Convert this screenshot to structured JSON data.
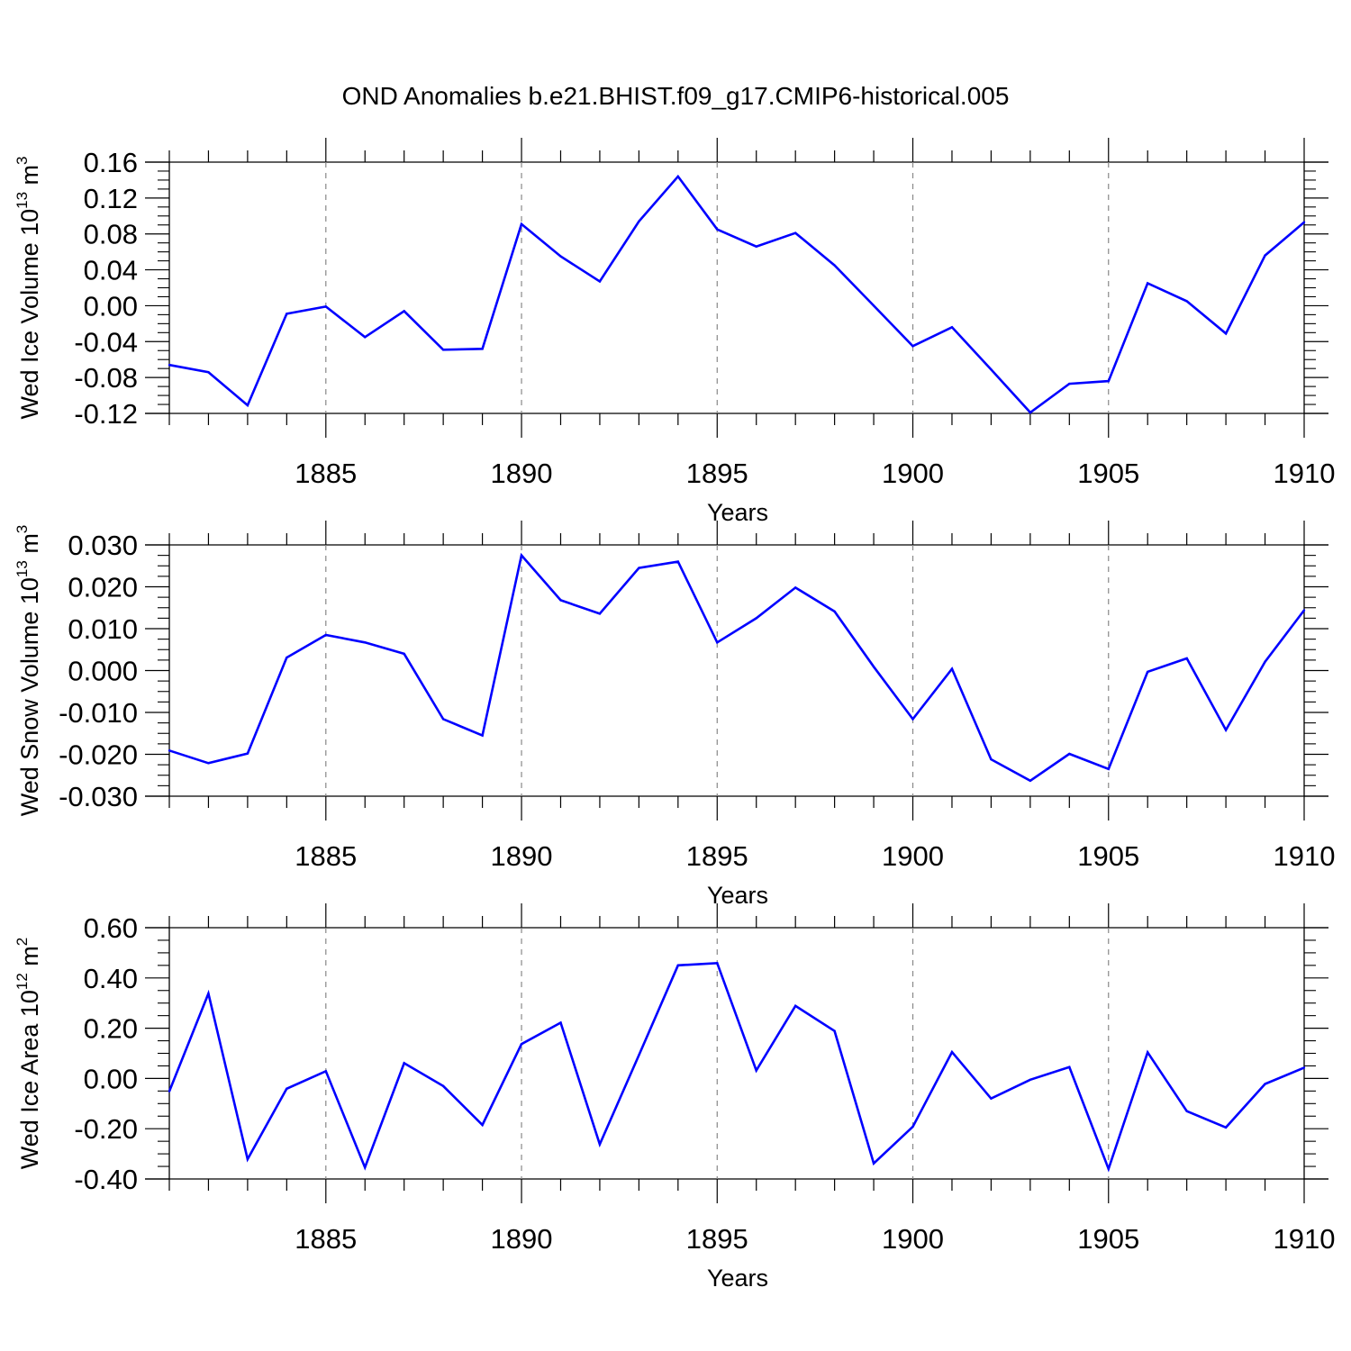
{
  "figure": {
    "title": "OND Anomalies b.e21.BHIST.f09_g17.CMIP6-historical.005"
  },
  "chart_data": [
    {
      "type": "line",
      "ylabel": "Wed Ice Volume 10",
      "ylabel_sup": "13",
      "ylabel_unit": " m",
      "ylabel_unit_sup": "3",
      "xlabel": "Years",
      "xlim": [
        1881,
        1910
      ],
      "ylim": [
        -0.12,
        0.16
      ],
      "yticks": [
        -0.12,
        -0.08,
        -0.04,
        0.0,
        0.04,
        0.08,
        0.12,
        0.16
      ],
      "ytick_labels": [
        "-0.12",
        "-0.08",
        "-0.04",
        "0.00",
        "0.04",
        "0.08",
        "0.12",
        "0.16"
      ],
      "xticks": [
        1885,
        1890,
        1895,
        1900,
        1905,
        1910
      ],
      "xtick_labels": [
        "1885",
        "1890",
        "1895",
        "1900",
        "1905",
        "1910"
      ],
      "grid": "vertical dashed at major x ticks",
      "series_color": "#0000ff",
      "x": [
        1881,
        1882,
        1883,
        1884,
        1885,
        1886,
        1887,
        1888,
        1889,
        1890,
        1891,
        1892,
        1893,
        1894,
        1895,
        1896,
        1897,
        1898,
        1899,
        1900,
        1901,
        1902,
        1903,
        1904,
        1905,
        1906,
        1907,
        1908,
        1909,
        1910
      ],
      "values": [
        -0.066,
        -0.074,
        -0.111,
        -0.009,
        -0.001,
        -0.035,
        -0.006,
        -0.049,
        -0.048,
        0.091,
        0.055,
        0.027,
        0.094,
        0.144,
        0.085,
        0.066,
        0.081,
        0.045,
        0.0,
        -0.045,
        -0.024,
        -0.071,
        -0.119,
        -0.087,
        -0.084,
        0.025,
        0.005,
        -0.031,
        0.056,
        0.093
      ]
    },
    {
      "type": "line",
      "ylabel": "Wed Snow Volume 10",
      "ylabel_sup": "13",
      "ylabel_unit": " m",
      "ylabel_unit_sup": "3",
      "xlabel": "Years",
      "xlim": [
        1881,
        1910
      ],
      "ylim": [
        -0.03,
        0.03
      ],
      "yticks": [
        -0.03,
        -0.02,
        -0.01,
        0.0,
        0.01,
        0.02,
        0.03
      ],
      "ytick_labels": [
        "-0.030",
        "-0.020",
        "-0.010",
        "0.000",
        "0.010",
        "0.020",
        "0.030"
      ],
      "xticks": [
        1885,
        1890,
        1895,
        1900,
        1905,
        1910
      ],
      "xtick_labels": [
        "1885",
        "1890",
        "1895",
        "1900",
        "1905",
        "1910"
      ],
      "grid": "vertical dashed at major x ticks",
      "series_color": "#0000ff",
      "x": [
        1881,
        1882,
        1883,
        1884,
        1885,
        1886,
        1887,
        1888,
        1889,
        1890,
        1891,
        1892,
        1893,
        1894,
        1895,
        1896,
        1897,
        1898,
        1899,
        1900,
        1901,
        1902,
        1903,
        1904,
        1905,
        1906,
        1907,
        1908,
        1909,
        1910
      ],
      "values": [
        -0.0191,
        -0.0221,
        -0.0198,
        0.0031,
        0.0085,
        0.0067,
        0.004,
        -0.0116,
        -0.0155,
        0.0275,
        0.0168,
        0.0136,
        0.0245,
        0.026,
        0.0067,
        0.0125,
        0.0198,
        0.0141,
        0.0009,
        -0.0116,
        0.0004,
        -0.0212,
        -0.0263,
        -0.0199,
        -0.0235,
        -0.0003,
        0.0029,
        -0.0142,
        0.0021,
        0.0144
      ]
    },
    {
      "type": "line",
      "ylabel": "Wed Ice Area 10",
      "ylabel_sup": "12",
      "ylabel_unit": " m",
      "ylabel_unit_sup": "2",
      "xlabel": "Years",
      "xlim": [
        1881,
        1910
      ],
      "ylim": [
        -0.4,
        0.6
      ],
      "yticks": [
        -0.4,
        -0.2,
        0.0,
        0.2,
        0.4,
        0.6
      ],
      "ytick_labels": [
        "-0.40",
        "-0.20",
        "0.00",
        "0.20",
        "0.40",
        "0.60"
      ],
      "xticks": [
        1885,
        1890,
        1895,
        1900,
        1905,
        1910
      ],
      "xtick_labels": [
        "1885",
        "1890",
        "1895",
        "1900",
        "1905",
        "1910"
      ],
      "grid": "vertical dashed at major x ticks",
      "series_color": "#0000ff",
      "x": [
        1881,
        1882,
        1883,
        1884,
        1885,
        1886,
        1887,
        1888,
        1889,
        1890,
        1891,
        1892,
        1893,
        1894,
        1895,
        1896,
        1897,
        1898,
        1899,
        1900,
        1901,
        1902,
        1903,
        1904,
        1905,
        1906,
        1907,
        1908,
        1909,
        1910
      ],
      "values": [
        -0.051,
        0.338,
        -0.321,
        -0.041,
        0.029,
        -0.354,
        0.061,
        -0.03,
        -0.185,
        0.137,
        0.222,
        -0.262,
        0.093,
        0.45,
        0.459,
        0.032,
        0.289,
        0.189,
        -0.338,
        -0.192,
        0.105,
        -0.08,
        -0.005,
        0.045,
        -0.36,
        0.104,
        -0.13,
        -0.195,
        -0.022,
        0.043
      ]
    }
  ]
}
